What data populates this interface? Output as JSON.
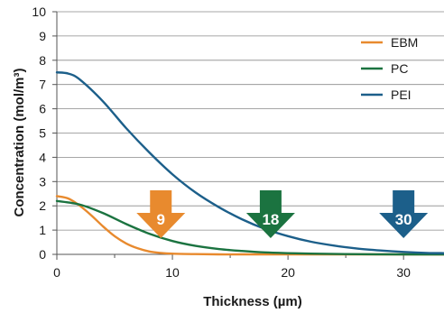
{
  "chart_data": {
    "type": "line",
    "xlabel": "Thickness (µm)",
    "ylabel": "Concentration (mol/m³)",
    "xlim": [
      0,
      33.5
    ],
    "ylim": [
      0,
      10
    ],
    "x_ticks": [
      0,
      10,
      20,
      30
    ],
    "y_ticks": [
      0,
      1,
      2,
      3,
      4,
      5,
      6,
      7,
      8,
      9,
      10
    ],
    "grid": "horizontal",
    "legend_position": "top-right",
    "series": [
      {
        "name": "EBM",
        "color": "#e88a2e",
        "x": [
          0,
          1,
          2,
          3,
          4,
          5,
          6,
          7,
          8,
          9,
          10,
          12,
          14,
          16,
          20,
          25,
          30,
          33.5
        ],
        "y": [
          2.4,
          2.3,
          2.0,
          1.6,
          1.15,
          0.75,
          0.45,
          0.25,
          0.12,
          0.06,
          0.03,
          0.01,
          0.0,
          0.0,
          0.0,
          0.0,
          0.0,
          0.0
        ]
      },
      {
        "name": "PC",
        "color": "#1b7340",
        "x": [
          0,
          2,
          4,
          6,
          8,
          10,
          12,
          14,
          16,
          18,
          20,
          22,
          25,
          30,
          33.5
        ],
        "y": [
          2.2,
          2.05,
          1.7,
          1.25,
          0.85,
          0.55,
          0.35,
          0.22,
          0.14,
          0.08,
          0.05,
          0.03,
          0.01,
          0.0,
          0.0
        ]
      },
      {
        "name": "PEI",
        "color": "#1c5f8a",
        "x": [
          0,
          1,
          2,
          4,
          6,
          8,
          10,
          12,
          14,
          16,
          18,
          20,
          22,
          24,
          26,
          28,
          30,
          32,
          33.5
        ],
        "y": [
          7.5,
          7.45,
          7.2,
          6.3,
          5.2,
          4.2,
          3.3,
          2.55,
          1.95,
          1.45,
          1.05,
          0.75,
          0.52,
          0.36,
          0.24,
          0.16,
          0.1,
          0.06,
          0.05
        ]
      }
    ],
    "annotations": [
      {
        "label": "9",
        "x": 9,
        "color": "#e88a2e"
      },
      {
        "label": "18",
        "x": 18.5,
        "color": "#1b7340"
      },
      {
        "label": "30",
        "x": 30,
        "color": "#1c5f8a"
      }
    ]
  }
}
